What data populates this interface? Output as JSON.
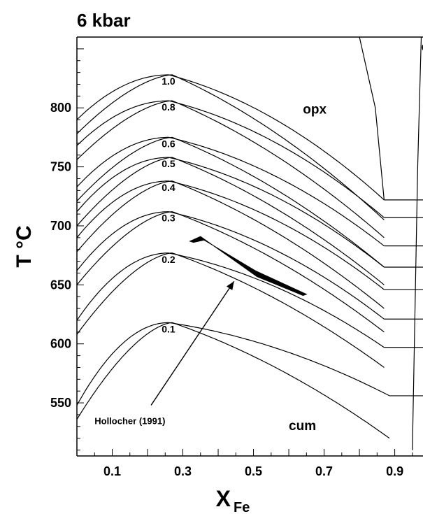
{
  "chart_data": {
    "type": "line",
    "title": "6 kbar",
    "xlabel": "X",
    "xlabel_sub": "Fe",
    "ylabel": "T °C",
    "xlim": [
      0.0,
      0.98
    ],
    "ylim": [
      505,
      860
    ],
    "x_ticks": [
      {
        "value": 0.1,
        "label": "0.1"
      },
      {
        "value": 0.3,
        "label": "0.3"
      },
      {
        "value": 0.5,
        "label": "0.5"
      },
      {
        "value": 0.7,
        "label": "0.7"
      },
      {
        "value": 0.9,
        "label": "0.9"
      }
    ],
    "y_ticks": [
      {
        "value": 550,
        "label": "550"
      },
      {
        "value": 600,
        "label": "600"
      },
      {
        "value": 650,
        "label": "650"
      },
      {
        "value": 700,
        "label": "700"
      },
      {
        "value": 750,
        "label": "750"
      },
      {
        "value": 800,
        "label": "800"
      }
    ],
    "grid": false,
    "series": [
      {
        "name": "0.1",
        "peak_x": 0.26,
        "peak_t": 618,
        "x_start": 0.0,
        "t_start": 548,
        "x_end": 0.885,
        "t_end": 556,
        "lower_end_t": 520
      },
      {
        "name": "0.2",
        "peak_x": 0.26,
        "peak_t": 677,
        "x_start": 0.0,
        "t_start": 620,
        "x_end": 0.87,
        "t_end": 597,
        "lower_end_t": 580
      },
      {
        "name": "0.3",
        "peak_x": 0.26,
        "peak_t": 712,
        "x_start": 0.0,
        "t_start": 662,
        "x_end": 0.87,
        "t_end": 621,
        "lower_end_t": 610
      },
      {
        "name": "0.4",
        "peak_x": 0.26,
        "peak_t": 738,
        "x_start": 0.0,
        "t_start": 690,
        "x_end": 0.87,
        "t_end": 646,
        "lower_end_t": 630
      },
      {
        "name": "0.5",
        "peak_x": 0.26,
        "peak_t": 758,
        "x_start": 0.0,
        "t_start": 712,
        "x_end": 0.87,
        "t_end": 665,
        "lower_end_t": 650
      },
      {
        "name": "0.6",
        "peak_x": 0.26,
        "peak_t": 775,
        "x_start": 0.0,
        "t_start": 733,
        "x_end": 0.87,
        "t_end": 683,
        "lower_end_t": 665
      },
      {
        "name": "0.8",
        "peak_x": 0.26,
        "peak_t": 806,
        "x_start": 0.0,
        "t_start": 768,
        "x_end": 0.87,
        "t_end": 707,
        "lower_end_t": 690
      },
      {
        "name": "1.0",
        "peak_x": 0.26,
        "peak_t": 828,
        "x_start": 0.0,
        "t_start": 790,
        "x_end": 0.87,
        "t_end": 722,
        "lower_end_t": 705
      }
    ],
    "phase_labels": [
      {
        "text": "opx",
        "x": 0.64,
        "t": 795
      },
      {
        "text": "ol",
        "x": 0.975,
        "t": 848
      },
      {
        "text": "cum",
        "x": 0.6,
        "t": 527
      }
    ],
    "annotation": {
      "text": "Hollocher (1991)",
      "text_x": 0.05,
      "text_t": 532,
      "arrow_from": [
        0.21,
        548
      ],
      "arrow_to": [
        0.445,
        653
      ]
    },
    "hollocher_band": [
      [
        0.32,
        687
      ],
      [
        0.35,
        691
      ],
      [
        0.51,
        657
      ],
      [
        0.64,
        641
      ],
      [
        0.65,
        642
      ],
      [
        0.505,
        662
      ],
      [
        0.36,
        688
      ],
      [
        0.33,
        686
      ]
    ],
    "opx_boundary": [
      [
        0.8,
        860
      ],
      [
        0.845,
        800
      ],
      [
        0.87,
        722
      ]
    ],
    "ol_boundary": [
      [
        0.975,
        860
      ],
      [
        0.965,
        750
      ],
      [
        0.95,
        510
      ]
    ]
  }
}
